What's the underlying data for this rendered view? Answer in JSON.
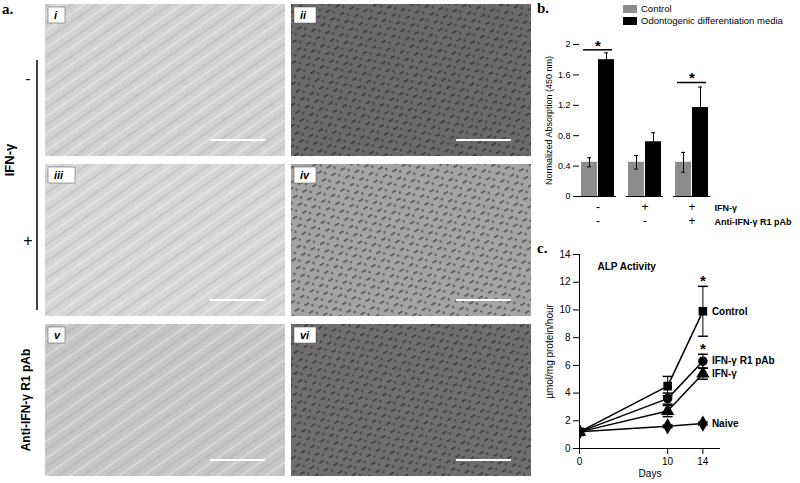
{
  "panel_a": {
    "label": "a.",
    "factor_label": "IFN-γ",
    "levels": [
      "-",
      "+"
    ],
    "third_row_label": "Anti-IFN-γ R1 pAb",
    "images": [
      [
        "i",
        "ii"
      ],
      [
        "iii",
        "iv"
      ],
      [
        "v",
        "vi"
      ]
    ]
  },
  "chart_data": [
    {
      "type": "bar",
      "panel": "b.",
      "categories": [
        null,
        null,
        null
      ],
      "x_table": [
        {
          "label": "IFN-γ",
          "values": [
            "-",
            "+",
            "+"
          ]
        },
        {
          "label": "Anti-IFN-γ R1 pAb",
          "values": [
            "-",
            "-",
            "+"
          ]
        }
      ],
      "y_label": "Normalized Absorption (450 nm)",
      "ylim": [
        0,
        2
      ],
      "yticks": [
        0,
        0.4,
        0.8,
        1.2,
        1.6,
        2
      ],
      "legend": "top-right",
      "series": [
        {
          "name": "Control",
          "color": "#8c8c8c",
          "values": [
            0.45,
            0.45,
            0.45
          ],
          "errors": [
            0.06,
            0.09,
            0.13
          ]
        },
        {
          "name": "Odontogenic differentiation media",
          "color": "#000000",
          "values": [
            1.8,
            0.72,
            1.17
          ],
          "errors": [
            0.09,
            0.12,
            0.27
          ]
        }
      ],
      "annotations": [
        {
          "index": 0,
          "y": 1.93,
          "label": "*"
        },
        {
          "index": 2,
          "y": 1.5,
          "label": "*"
        }
      ]
    },
    {
      "type": "line",
      "panel": "c.",
      "title": "ALP Activity",
      "x_label": "Days",
      "y_label": "µmol/mg protein/hour",
      "x": [
        0,
        10,
        14
      ],
      "xlim": [
        0,
        16
      ],
      "xticks": [
        0,
        10,
        14
      ],
      "ylim": [
        0,
        14
      ],
      "yticks": [
        0,
        2,
        4,
        6,
        8,
        10,
        12,
        14
      ],
      "series": [
        {
          "name": "Control",
          "color": "#000000",
          "marker": "square",
          "line_style": "solid",
          "values": [
            1.2,
            4.5,
            9.9
          ],
          "errors": [
            0.2,
            0.7,
            1.8
          ]
        },
        {
          "name": "IFN-γ R1 pAb",
          "color": "#000000",
          "marker": "circle",
          "line_style": "solid",
          "values": [
            1.2,
            3.6,
            6.3
          ],
          "errors": [
            0.2,
            0.4,
            0.5
          ]
        },
        {
          "name": "IFN-γ",
          "color": "#000000",
          "marker": "triangle",
          "line_style": "solid",
          "values": [
            1.2,
            2.7,
            5.4
          ],
          "errors": [
            0.2,
            0.4,
            0.4
          ]
        },
        {
          "name": "Naive",
          "color": "#000000",
          "marker": "diamond",
          "line_style": "solid",
          "values": [
            1.2,
            1.6,
            1.8
          ],
          "errors": [
            0.2,
            0.1,
            0.1
          ]
        }
      ],
      "annotations": [
        {
          "x": 14,
          "y": 12.1,
          "label": "*"
        },
        {
          "x": 14,
          "y": 7.2,
          "label": "*"
        }
      ]
    }
  ]
}
